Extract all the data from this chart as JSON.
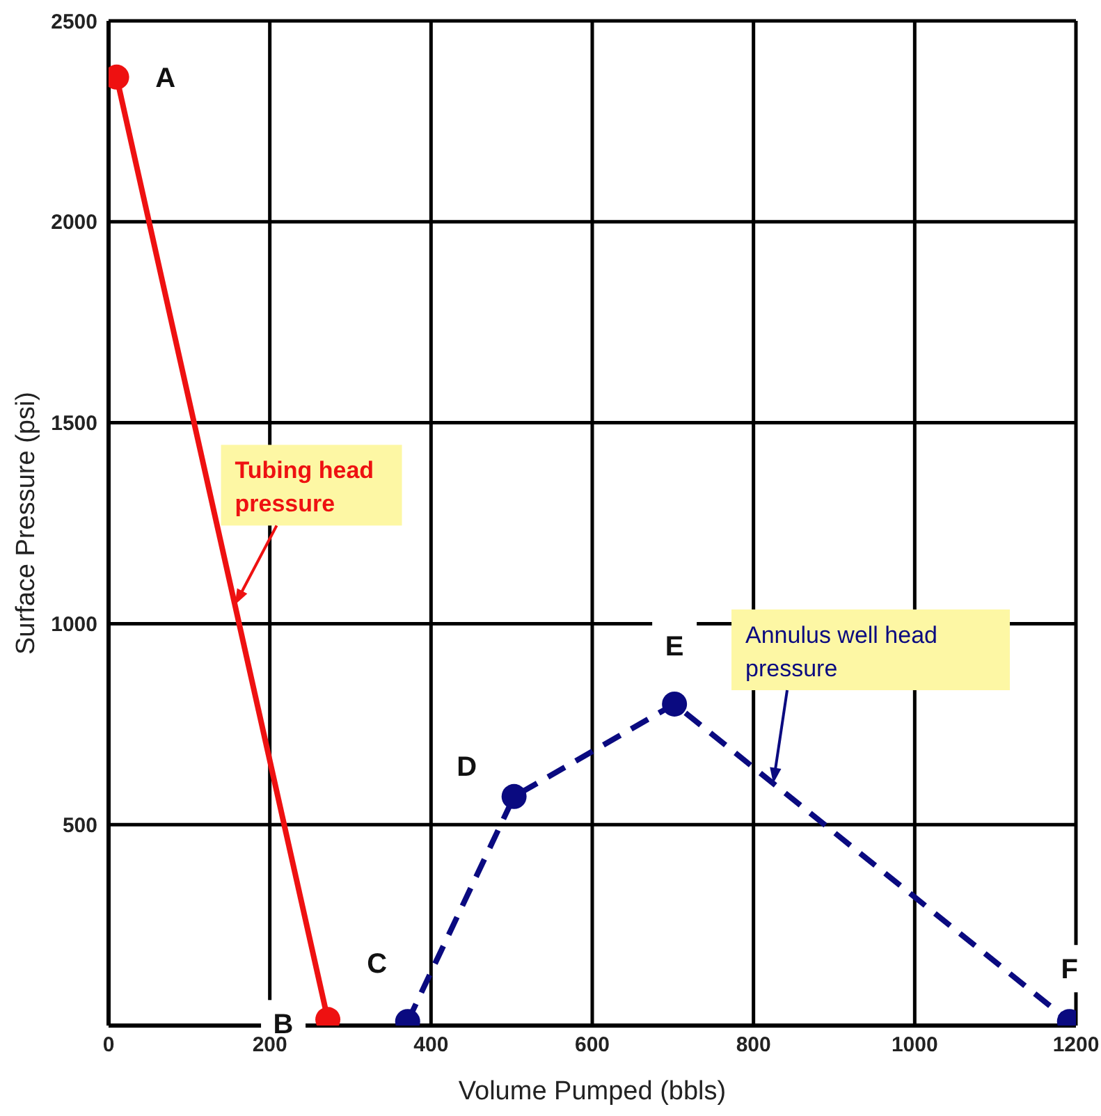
{
  "chart_data": {
    "type": "line",
    "xlabel": "Volume Pumped (bbls)",
    "ylabel": "Surface Pressure (psi)",
    "xlim": [
      0,
      1200
    ],
    "xticks": [
      0,
      200,
      400,
      600,
      800,
      1000,
      1200
    ],
    "ylim": [
      0,
      2500
    ],
    "yticks": [
      500,
      1000,
      1500,
      2000,
      2500
    ],
    "grid": true,
    "legend": false,
    "marker": "circle",
    "series": [
      {
        "name": "Tubing head pressure",
        "color": "#ee1111",
        "line_style": "solid",
        "x": [
          10,
          272
        ],
        "values": [
          2360,
          15
        ]
      },
      {
        "name": "Annulus well head pressure",
        "color": "#0a0a80",
        "line_style": "dashed",
        "x": [
          371,
          503,
          702,
          1192
        ],
        "values": [
          10,
          570,
          800,
          10
        ]
      }
    ],
    "annotations": [
      {
        "text": "A",
        "x": 10,
        "y": 2360
      },
      {
        "text": "B",
        "x": 272,
        "y": 15
      },
      {
        "text": "C",
        "x": 371,
        "y": 10
      },
      {
        "text": "D",
        "x": 503,
        "y": 570
      },
      {
        "text": "E",
        "x": 702,
        "y": 800
      },
      {
        "text": "F",
        "x": 1192,
        "y": 10
      }
    ]
  }
}
